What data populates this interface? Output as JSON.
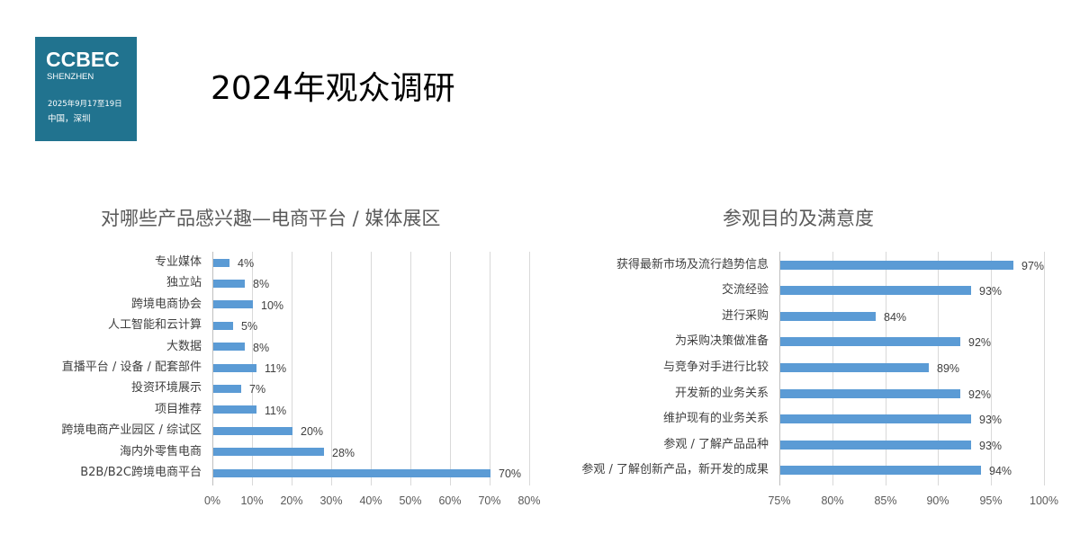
{
  "logo": {
    "brand": "CCBEC",
    "city": "SHENZHEN",
    "date": "2025年9月17至19日",
    "place": "中国，深圳",
    "bg_color": "#21738f"
  },
  "page_title": "2024年观众调研",
  "chart_data": [
    {
      "type": "bar",
      "orientation": "horizontal",
      "title": "对哪些产品感兴趣—电商平台 / 媒体展区",
      "categories": [
        "专业媒体",
        "独立站",
        "跨境电商协会",
        "人工智能和云计算",
        "大数据",
        "直播平台 / 设备 / 配套部件",
        "投资环境展示",
        "项目推荐",
        "跨境电商产业园区 / 综试区",
        "海内外零售电商",
        "B2B/B2C跨境电商平台"
      ],
      "values": [
        4,
        8,
        10,
        5,
        8,
        11,
        7,
        11,
        20,
        28,
        70
      ],
      "labels": [
        "4%",
        "8%",
        "10%",
        "5%",
        "8%",
        "11%",
        "7%",
        "11%",
        "20%",
        "28%",
        "70%"
      ],
      "xlabel": "",
      "ylabel": "",
      "xlim": [
        0,
        80
      ],
      "xticks": [
        "0%",
        "10%",
        "20%",
        "30%",
        "40%",
        "50%",
        "60%",
        "70%",
        "80%"
      ],
      "grid": true,
      "legend": false,
      "bar_color": "#5b9bd5"
    },
    {
      "type": "bar",
      "orientation": "horizontal",
      "title": "参观目的及满意度",
      "categories": [
        "获得最新市场及流行趋势信息",
        "交流经验",
        "进行采购",
        "为采购决策做准备",
        "与竞争对手进行比较",
        "开发新的业务关系",
        "维护现有的业务关系",
        "参观 / 了解产品品种",
        "参观 / 了解创新产品，新开发的成果"
      ],
      "values": [
        97,
        93,
        84,
        92,
        89,
        92,
        93,
        93,
        94
      ],
      "labels": [
        "97%",
        "93%",
        "84%",
        "92%",
        "89%",
        "92%",
        "93%",
        "93%",
        "94%"
      ],
      "xlabel": "",
      "ylabel": "",
      "xlim": [
        75,
        100
      ],
      "xticks": [
        "75%",
        "80%",
        "85%",
        "90%",
        "95%",
        "100%"
      ],
      "grid": true,
      "legend": false,
      "bar_color": "#5b9bd5"
    }
  ]
}
